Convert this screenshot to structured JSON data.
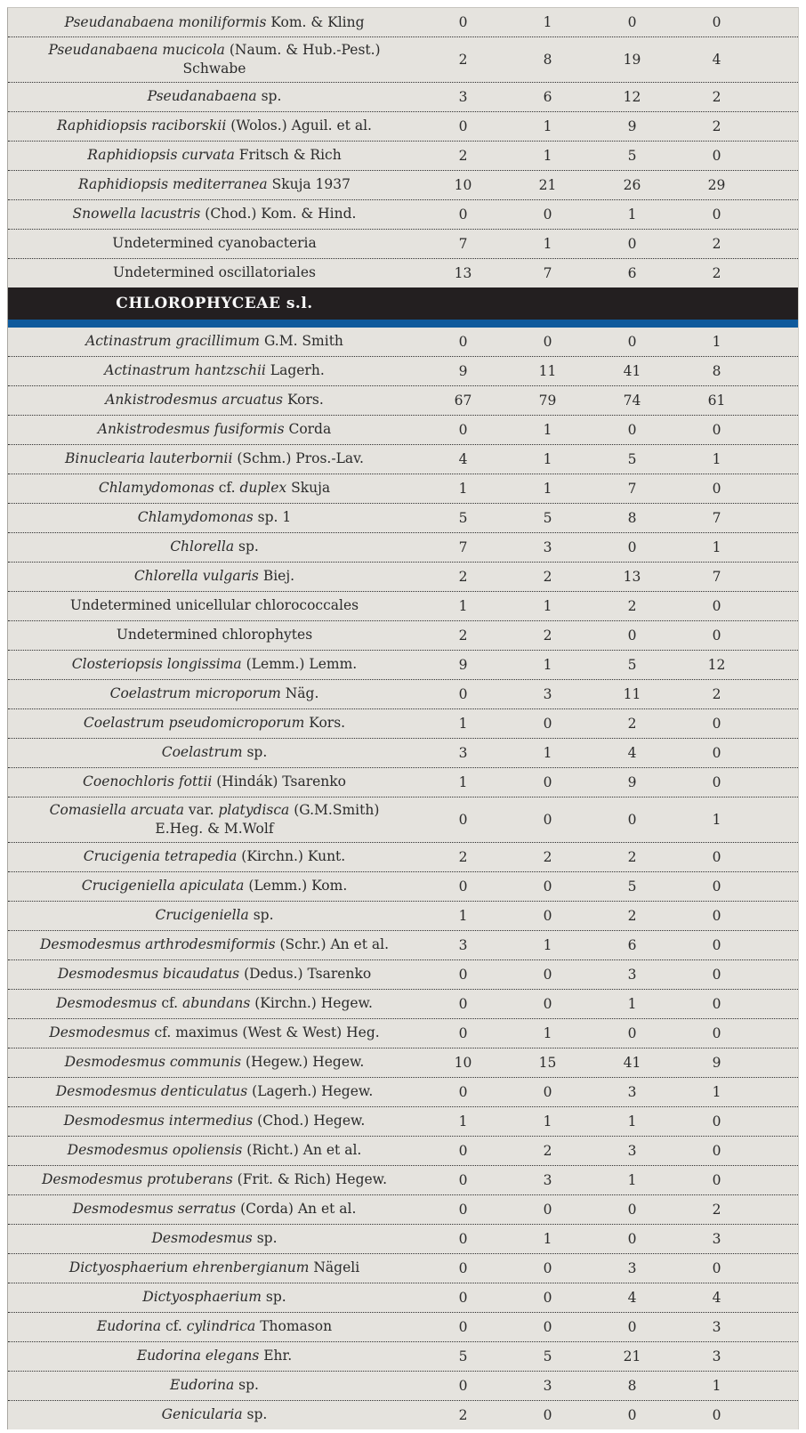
{
  "colors": {
    "row_background": "#e5e3de",
    "text": "#2b2b2b",
    "dotted_separator": "#2e2e2e",
    "section_band": "#231f20",
    "section_text": "#f8f8f8",
    "blue_bar": "#0f5a9c",
    "page_background": "#ffffff"
  },
  "table": {
    "rows": [
      {
        "type": "species",
        "name": [
          {
            "t": "Pseudanabaena moniliformis",
            "i": true
          },
          {
            "t": " Kom. & Kling",
            "i": false
          }
        ],
        "values": [
          "0",
          "1",
          "0",
          "0"
        ]
      },
      {
        "type": "species",
        "name": [
          {
            "t": "Pseudanabaena mucicola",
            "i": true
          },
          {
            "t": " (Naum. & Hub.-Pest.) Schwabe",
            "i": false
          }
        ],
        "values": [
          "2",
          "8",
          "19",
          "4"
        ]
      },
      {
        "type": "species",
        "name": [
          {
            "t": "Pseudanabaena",
            "i": true
          },
          {
            "t": " sp.",
            "i": false
          }
        ],
        "values": [
          "3",
          "6",
          "12",
          "2"
        ]
      },
      {
        "type": "species",
        "name": [
          {
            "t": "Raphidiopsis raciborskii",
            "i": true
          },
          {
            "t": " (Wolos.) Aguil. et al.",
            "i": false
          }
        ],
        "values": [
          "0",
          "1",
          "9",
          "2"
        ]
      },
      {
        "type": "species",
        "name": [
          {
            "t": "Raphidiopsis curvata",
            "i": true
          },
          {
            "t": " Fritsch & Rich",
            "i": false
          }
        ],
        "values": [
          "2",
          "1",
          "5",
          "0"
        ]
      },
      {
        "type": "species",
        "name": [
          {
            "t": "Raphidiopsis mediterranea",
            "i": true
          },
          {
            "t": " Skuja 1937",
            "i": false
          }
        ],
        "values": [
          "10",
          "21",
          "26",
          "29"
        ]
      },
      {
        "type": "species",
        "name": [
          {
            "t": "Snowella lacustris",
            "i": true
          },
          {
            "t": " (Chod.) Kom. & Hind.",
            "i": false
          }
        ],
        "values": [
          "0",
          "0",
          "1",
          "0"
        ]
      },
      {
        "type": "species",
        "name": [
          {
            "t": "Undetermined cyanobacteria",
            "i": false
          }
        ],
        "values": [
          "7",
          "1",
          "0",
          "2"
        ]
      },
      {
        "type": "species",
        "name": [
          {
            "t": "Undetermined oscillatoriales",
            "i": false
          }
        ],
        "values": [
          "13",
          "7",
          "6",
          "2"
        ]
      },
      {
        "type": "section",
        "label": "CHLOROPHYCEAE s.l."
      },
      {
        "type": "species",
        "name": [
          {
            "t": "Actinastrum gracillimum",
            "i": true
          },
          {
            "t": " G.M. Smith",
            "i": false
          }
        ],
        "values": [
          "0",
          "0",
          "0",
          "1"
        ]
      },
      {
        "type": "species",
        "name": [
          {
            "t": "Actinastrum hantzschii",
            "i": true
          },
          {
            "t": " Lagerh.",
            "i": false
          }
        ],
        "values": [
          "9",
          "11",
          "41",
          "8"
        ]
      },
      {
        "type": "species",
        "name": [
          {
            "t": "Ankistrodesmus arcuatus",
            "i": true
          },
          {
            "t": " Kors.",
            "i": false
          }
        ],
        "values": [
          "67",
          "79",
          "74",
          "61"
        ]
      },
      {
        "type": "species",
        "name": [
          {
            "t": "Ankistrodesmus fusiformis",
            "i": true
          },
          {
            "t": " Corda",
            "i": false
          }
        ],
        "values": [
          "0",
          "1",
          "0",
          "0"
        ]
      },
      {
        "type": "species",
        "name": [
          {
            "t": "Binuclearia lauterbornii",
            "i": true
          },
          {
            "t": " (Schm.) Pros.-Lav.",
            "i": false
          }
        ],
        "values": [
          "4",
          "1",
          "5",
          "1"
        ]
      },
      {
        "type": "species",
        "name": [
          {
            "t": "Chlamydomonas",
            "i": true
          },
          {
            "t": " cf. ",
            "i": false
          },
          {
            "t": "duplex",
            "i": true
          },
          {
            "t": " Skuja",
            "i": false
          }
        ],
        "values": [
          "1",
          "1",
          "7",
          "0"
        ]
      },
      {
        "type": "species",
        "name": [
          {
            "t": "Chlamydomonas",
            "i": true
          },
          {
            "t": " sp. 1",
            "i": false
          }
        ],
        "values": [
          "5",
          "5",
          "8",
          "7"
        ]
      },
      {
        "type": "species",
        "name": [
          {
            "t": "Chlorella",
            "i": true
          },
          {
            "t": " sp.",
            "i": false
          }
        ],
        "values": [
          "7",
          "3",
          "0",
          "1"
        ]
      },
      {
        "type": "species",
        "name": [
          {
            "t": "Chlorella vulgaris",
            "i": true
          },
          {
            "t": " Biej.",
            "i": false
          }
        ],
        "values": [
          "2",
          "2",
          "13",
          "7"
        ]
      },
      {
        "type": "species",
        "name": [
          {
            "t": "Undetermined unicellular chlorococcales",
            "i": false
          }
        ],
        "values": [
          "1",
          "1",
          "2",
          "0"
        ]
      },
      {
        "type": "species",
        "name": [
          {
            "t": "Undetermined chlorophytes",
            "i": false
          }
        ],
        "values": [
          "2",
          "2",
          "0",
          "0"
        ]
      },
      {
        "type": "species",
        "name": [
          {
            "t": "Closteriopsis longissima",
            "i": true
          },
          {
            "t": " (Lemm.) Lemm.",
            "i": false
          }
        ],
        "values": [
          "9",
          "1",
          "5",
          "12"
        ]
      },
      {
        "type": "species",
        "name": [
          {
            "t": "Coelastrum microporum",
            "i": true
          },
          {
            "t": " Näg.",
            "i": false
          }
        ],
        "values": [
          "0",
          "3",
          "11",
          "2"
        ]
      },
      {
        "type": "species",
        "name": [
          {
            "t": "Coelastrum pseudomicroporum",
            "i": true
          },
          {
            "t": " Kors.",
            "i": false
          }
        ],
        "values": [
          "1",
          "0",
          "2",
          "0"
        ]
      },
      {
        "type": "species",
        "name": [
          {
            "t": "Coelastrum",
            "i": true
          },
          {
            "t": " sp.",
            "i": false
          }
        ],
        "values": [
          "3",
          "1",
          "4",
          "0"
        ]
      },
      {
        "type": "species",
        "name": [
          {
            "t": "Coenochloris fottii",
            "i": true
          },
          {
            "t": " (Hindák) Tsarenko",
            "i": false
          }
        ],
        "values": [
          "1",
          "0",
          "9",
          "0"
        ]
      },
      {
        "type": "species",
        "tall": true,
        "name": [
          {
            "t": "Comasiella arcuata",
            "i": true
          },
          {
            "t": " var. ",
            "i": false
          },
          {
            "t": "platydisca",
            "i": true
          },
          {
            "t": " (G.M.Smith) E.Heg. & M.Wolf",
            "i": false
          }
        ],
        "values": [
          "0",
          "0",
          "0",
          "1"
        ]
      },
      {
        "type": "species",
        "name": [
          {
            "t": "Crucigenia tetrapedia",
            "i": true
          },
          {
            "t": " (Kirchn.) Kunt.",
            "i": false
          }
        ],
        "values": [
          "2",
          "2",
          "2",
          "0"
        ]
      },
      {
        "type": "species",
        "name": [
          {
            "t": "Crucigeniella apiculata",
            "i": true
          },
          {
            "t": " (Lemm.) Kom.",
            "i": false
          }
        ],
        "values": [
          "0",
          "0",
          "5",
          "0"
        ]
      },
      {
        "type": "species",
        "name": [
          {
            "t": "Crucigeniella",
            "i": true
          },
          {
            "t": " sp.",
            "i": false
          }
        ],
        "values": [
          "1",
          "0",
          "2",
          "0"
        ]
      },
      {
        "type": "species",
        "name": [
          {
            "t": "Desmodesmus arthrodesmiformis",
            "i": true
          },
          {
            "t": " (Schr.) An et al.",
            "i": false
          }
        ],
        "values": [
          "3",
          "1",
          "6",
          "0"
        ]
      },
      {
        "type": "species",
        "name": [
          {
            "t": "Desmodesmus bicaudatus",
            "i": true
          },
          {
            "t": " (Dedus.) Tsarenko",
            "i": false
          }
        ],
        "values": [
          "0",
          "0",
          "3",
          "0"
        ]
      },
      {
        "type": "species",
        "name": [
          {
            "t": "Desmodesmus",
            "i": true
          },
          {
            "t": " cf. ",
            "i": false
          },
          {
            "t": "abundans",
            "i": true
          },
          {
            "t": " (Kirchn.) Hegew.",
            "i": false
          }
        ],
        "values": [
          "0",
          "0",
          "1",
          "0"
        ]
      },
      {
        "type": "species",
        "name": [
          {
            "t": "Desmodesmus",
            "i": true
          },
          {
            "t": " cf. maximus (West & West) Heg.",
            "i": false
          }
        ],
        "values": [
          "0",
          "1",
          "0",
          "0"
        ]
      },
      {
        "type": "species",
        "name": [
          {
            "t": "Desmodesmus communis",
            "i": true
          },
          {
            "t": " (Hegew.) Hegew.",
            "i": false
          }
        ],
        "values": [
          "10",
          "15",
          "41",
          "9"
        ]
      },
      {
        "type": "species",
        "name": [
          {
            "t": "Desmodesmus denticulatus",
            "i": true
          },
          {
            "t": " (Lagerh.) Hegew.",
            "i": false
          }
        ],
        "values": [
          "0",
          "0",
          "3",
          "1"
        ]
      },
      {
        "type": "species",
        "name": [
          {
            "t": "Desmodesmus intermedius",
            "i": true
          },
          {
            "t": " (Chod.) Hegew.",
            "i": false
          }
        ],
        "values": [
          "1",
          "1",
          "1",
          "0"
        ]
      },
      {
        "type": "species",
        "name": [
          {
            "t": "Desmodesmus opoliensis",
            "i": true
          },
          {
            "t": " (Richt.) An et al.",
            "i": false
          }
        ],
        "values": [
          "0",
          "2",
          "3",
          "0"
        ]
      },
      {
        "type": "species",
        "name": [
          {
            "t": "Desmodesmus protuberans",
            "i": true
          },
          {
            "t": " (Frit. & Rich) Hegew.",
            "i": false
          }
        ],
        "values": [
          "0",
          "3",
          "1",
          "0"
        ]
      },
      {
        "type": "species",
        "name": [
          {
            "t": "Desmodesmus serratus",
            "i": true
          },
          {
            "t": " (Corda) An et al.",
            "i": false
          }
        ],
        "values": [
          "0",
          "0",
          "0",
          "2"
        ]
      },
      {
        "type": "species",
        "name": [
          {
            "t": "Desmodesmus",
            "i": true
          },
          {
            "t": " sp.",
            "i": false
          }
        ],
        "values": [
          "0",
          "1",
          "0",
          "3"
        ]
      },
      {
        "type": "species",
        "name": [
          {
            "t": "Dictyosphaerium ehrenbergianum",
            "i": true
          },
          {
            "t": " Nägeli",
            "i": false
          }
        ],
        "values": [
          "0",
          "0",
          "3",
          "0"
        ]
      },
      {
        "type": "species",
        "name": [
          {
            "t": "Dictyosphaerium",
            "i": true
          },
          {
            "t": " sp.",
            "i": false
          }
        ],
        "values": [
          "0",
          "0",
          "4",
          "4"
        ]
      },
      {
        "type": "species",
        "name": [
          {
            "t": "Eudorina",
            "i": true
          },
          {
            "t": " cf. ",
            "i": false
          },
          {
            "t": "cylindrica",
            "i": true
          },
          {
            "t": " Thomason",
            "i": false
          }
        ],
        "values": [
          "0",
          "0",
          "0",
          "3"
        ]
      },
      {
        "type": "species",
        "name": [
          {
            "t": "Eudorina elegans",
            "i": true
          },
          {
            "t": " Ehr.",
            "i": false
          }
        ],
        "values": [
          "5",
          "5",
          "21",
          "3"
        ]
      },
      {
        "type": "species",
        "name": [
          {
            "t": "Eudorina",
            "i": true
          },
          {
            "t": " sp.",
            "i": false
          }
        ],
        "values": [
          "0",
          "3",
          "8",
          "1"
        ]
      },
      {
        "type": "species",
        "name": [
          {
            "t": "Genicularia",
            "i": true
          },
          {
            "t": " sp.",
            "i": false
          }
        ],
        "values": [
          "2",
          "0",
          "0",
          "0"
        ]
      }
    ]
  }
}
